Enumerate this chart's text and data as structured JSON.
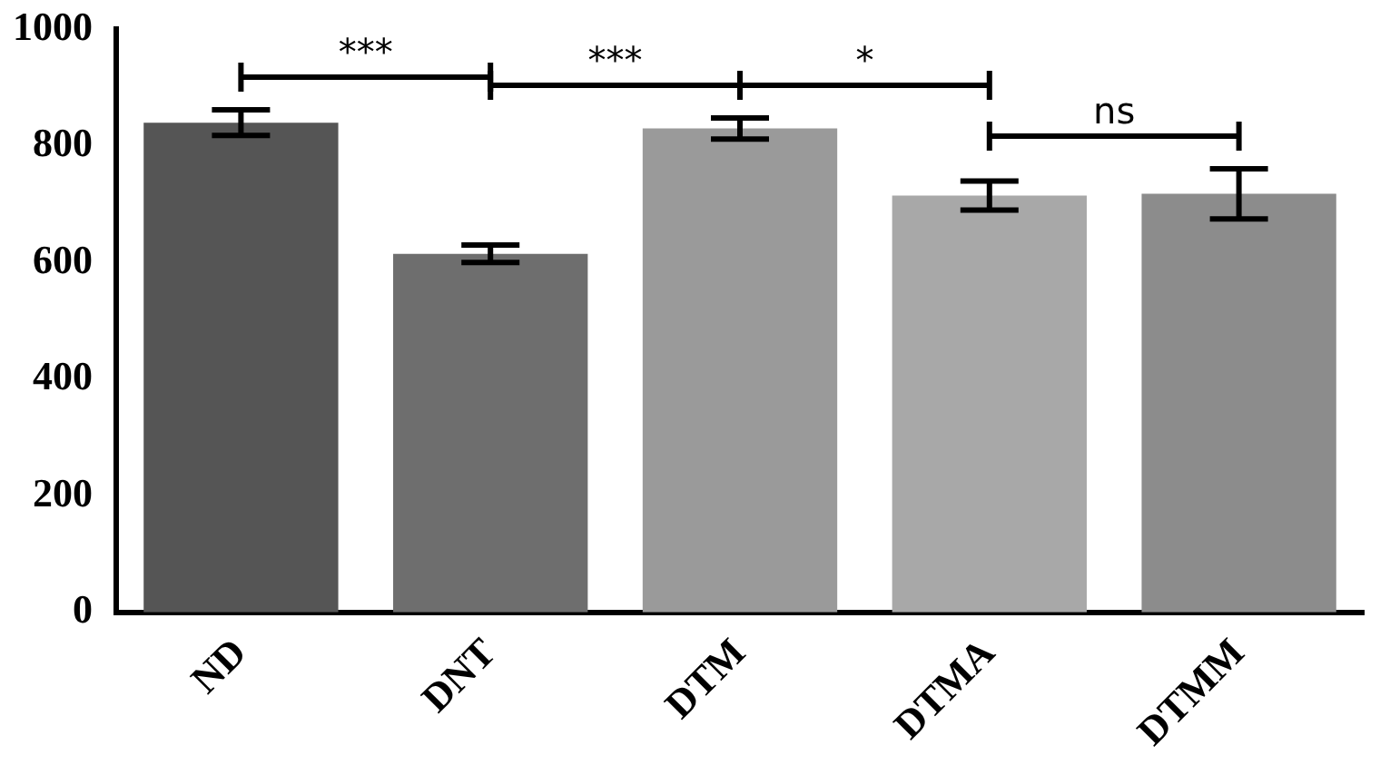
{
  "chart_data": {
    "type": "bar",
    "categories": [
      "ND",
      "DNT",
      "DTM",
      "DTMA",
      "DTMM"
    ],
    "values": [
      840,
      615,
      830,
      715,
      718
    ],
    "errors": [
      22,
      15,
      18,
      25,
      43
    ],
    "colors": [
      "#555555",
      "#6e6e6e",
      "#9a9a9a",
      "#a8a8a8",
      "#8c8c8c"
    ],
    "ylim": [
      0,
      1000
    ],
    "yticks": [
      0,
      200,
      400,
      600,
      800,
      1000
    ],
    "grid": false,
    "annotations": [
      "***",
      "***",
      "*",
      "ns"
    ]
  }
}
